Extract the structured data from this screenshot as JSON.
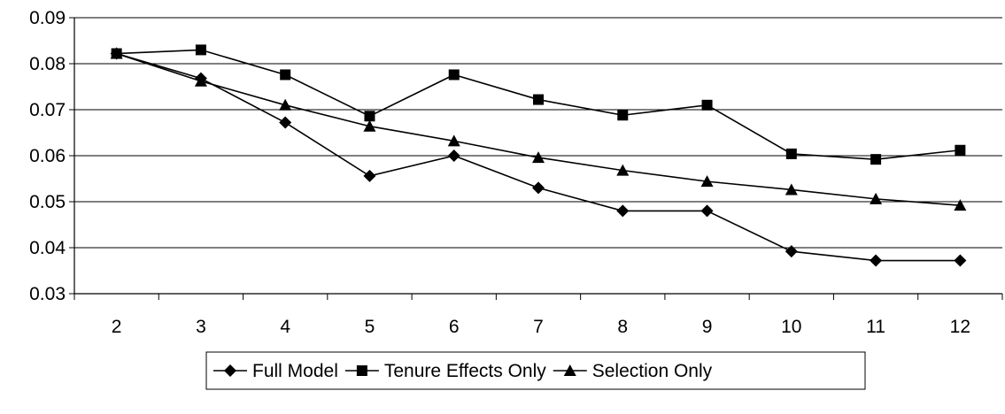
{
  "chart_data": {
    "type": "line",
    "x": [
      2,
      3,
      4,
      5,
      6,
      7,
      8,
      9,
      10,
      11,
      12
    ],
    "ylim": [
      0.03,
      0.09
    ],
    "yticks": [
      "0.03",
      "0.04",
      "0.05",
      "0.06",
      "0.07",
      "0.08",
      "0.09"
    ],
    "grid": "horizontal",
    "legend_position": "bottom",
    "series": [
      {
        "name": "Full Model",
        "marker": "diamond",
        "values": [
          0.0822,
          0.0768,
          0.0672,
          0.0556,
          0.06,
          0.053,
          0.048,
          0.048,
          0.0392,
          0.0372,
          0.0372
        ]
      },
      {
        "name": "Tenure Effects Only",
        "marker": "square",
        "values": [
          0.0822,
          0.083,
          0.0776,
          0.0686,
          0.0776,
          0.0722,
          0.0688,
          0.071,
          0.0604,
          0.0592,
          0.0612
        ]
      },
      {
        "name": "Selection Only",
        "marker": "triangle",
        "values": [
          0.0822,
          0.0762,
          0.071,
          0.0664,
          0.0632,
          0.0596,
          0.0568,
          0.0544,
          0.0526,
          0.0506,
          0.0492
        ]
      }
    ]
  }
}
